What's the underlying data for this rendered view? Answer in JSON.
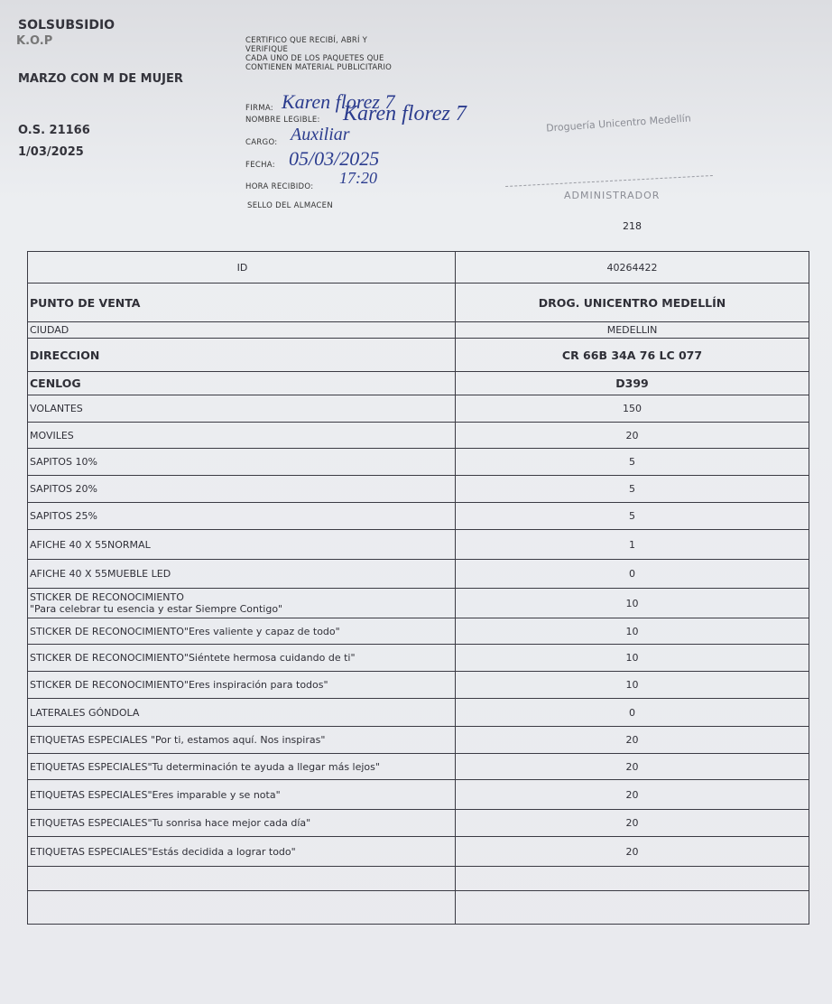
{
  "header": {
    "org": "SOLSUBSIDIO",
    "code": "K.O.P",
    "campaign": "MARZO CON M DE MUJER",
    "order": "O.S. 21166",
    "date": "1/03/2025"
  },
  "certification": {
    "text": [
      "CERTIFICO QUE RECIBÍ, ABRÍ Y",
      "VERIFIQUE",
      "CADA UNO DE LOS PAQUETES QUE",
      "CONTIENEN MATERIAL PUBLICITARIO"
    ],
    "fields": [
      {
        "label": "FIRMA:",
        "value": "Karen florez 7"
      },
      {
        "label": "NOMBRE LEGIBLE:",
        "value": "Karen florez 7"
      },
      {
        "label": "CARGO:",
        "value": "Auxiliar"
      },
      {
        "label": "FECHA:",
        "value": "05/03/2025"
      },
      {
        "label": "HORA RECIBIDO:",
        "value": "17:20"
      }
    ],
    "seal": "SELLO DEL ALMACEN"
  },
  "stamp": {
    "name": "Droguería Unicentro Medellín",
    "role": "ADMINISTRADOR",
    "number": "218"
  },
  "table": {
    "rows": [
      [
        "ID",
        "40264422"
      ],
      [
        "PUNTO DE VENTA",
        "DROG. UNICENTRO MEDELLÍN"
      ],
      [
        "CIUDAD",
        "MEDELLIN"
      ],
      [
        "DIRECCION",
        "CR 66B 34A 76 LC 077"
      ],
      [
        "CENLOG",
        "D399"
      ],
      [
        "VOLANTES",
        "150"
      ],
      [
        "MOVILES",
        "20"
      ],
      [
        "SAPITOS 10%",
        "5"
      ],
      [
        "SAPITOS 20%",
        "5"
      ],
      [
        "SAPITOS 25%",
        "5"
      ],
      [
        "AFICHE 40 X 55NORMAL",
        "1"
      ],
      [
        "AFICHE 40 X 55MUEBLE LED",
        "0"
      ],
      [
        "STICKER DE RECONOCIMIENTO\n\"Para celebrar tu esencia y estar Siempre Contigo\"",
        "10"
      ],
      [
        "STICKER DE RECONOCIMIENTO\"Eres valiente y capaz de todo\"",
        "10"
      ],
      [
        "STICKER DE RECONOCIMIENTO\"Siéntete hermosa cuidando de ti\"",
        "10"
      ],
      [
        "STICKER DE RECONOCIMIENTO\"Eres inspiración para todos\"",
        "10"
      ],
      [
        "LATERALES GÓNDOLA",
        "0"
      ],
      [
        "ETIQUETAS ESPECIALES \"Por ti, estamos aquí. Nos inspiras\"",
        "20"
      ],
      [
        "ETIQUETAS ESPECIALES\"Tu determinación te ayuda a llegar más lejos\"",
        "20"
      ],
      [
        "ETIQUETAS ESPECIALES\"Eres imparable y se nota\"",
        "20"
      ],
      [
        "ETIQUETAS ESPECIALES\"Tu sonrisa hace mejor cada día\"",
        "20"
      ],
      [
        "ETIQUETAS ESPECIALES\"Estás decidida a lograr todo\"",
        "20"
      ]
    ]
  }
}
